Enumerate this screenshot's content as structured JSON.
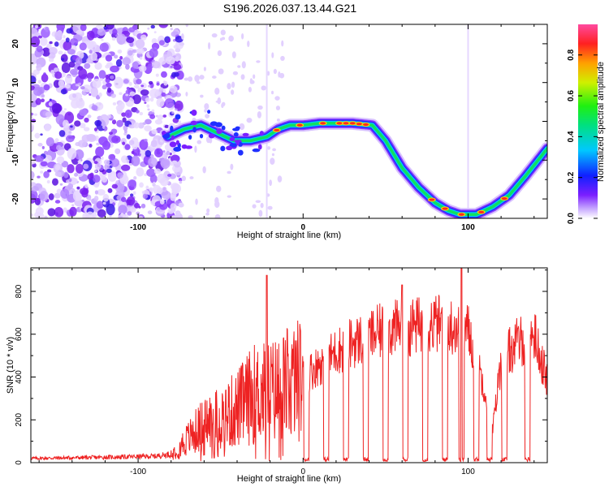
{
  "title": "S196.2026.037.13.44.G21",
  "chart_data": [
    {
      "type": "heatmap",
      "xlabel": "Height of straight line (km)",
      "ylabel": "Frequency (Hz)",
      "xlim": [
        -165,
        148
      ],
      "ylim": [
        -25,
        25
      ],
      "xticks": [
        -100,
        0,
        100
      ],
      "yticks": [
        -20,
        -10,
        0,
        10,
        20
      ],
      "colorbar": {
        "label": "Normalized spectral amplitude",
        "range": [
          0,
          0.95
        ],
        "ticks": [
          "0.0",
          "0.2",
          "0.4",
          "0.6",
          "0.8"
        ],
        "tick_values": [
          0,
          0.2,
          0.4,
          0.6,
          0.8
        ]
      },
      "ridge": {
        "x": [
          -82,
          -72,
          -62,
          -52,
          -42,
          -32,
          -22,
          -15,
          -8,
          0,
          10,
          20,
          30,
          42,
          50,
          60,
          70,
          80,
          88,
          95,
          105,
          115,
          125,
          135,
          148
        ],
        "y": [
          -4,
          -2,
          -1,
          -3,
          -5,
          -5,
          -4,
          -2,
          -1,
          -1,
          -0.5,
          -0.5,
          -0.5,
          -1,
          -5,
          -12,
          -17,
          -21,
          -23,
          -24,
          -24,
          -22,
          -19,
          -14,
          -7
        ]
      },
      "noise_region_end_x": -80
    },
    {
      "type": "line",
      "xlabel": "Height of straight line (km)",
      "ylabel": "SNR (10 * v/v)",
      "xlim": [
        -165,
        148
      ],
      "ylim": [
        0,
        910
      ],
      "xticks": [
        -100,
        0,
        100
      ],
      "yticks": [
        0,
        200,
        400,
        600,
        800
      ],
      "series": [
        {
          "name": "SNR",
          "color": "#ee2222",
          "envelope_x": [
            -165,
            -120,
            -90,
            -80,
            -70,
            -60,
            -50,
            -40,
            -30,
            -20,
            -10,
            0,
            10,
            20,
            30,
            40,
            50,
            60,
            70,
            80,
            90,
            100,
            110,
            115,
            120,
            130,
            140,
            148
          ],
          "envelope_y": [
            20,
            25,
            30,
            40,
            110,
            180,
            210,
            250,
            320,
            330,
            360,
            400,
            460,
            520,
            560,
            590,
            620,
            630,
            640,
            650,
            640,
            620,
            350,
            160,
            480,
            560,
            600,
            380
          ],
          "dropout_x": [
            2,
            14,
            26,
            38,
            50,
            62,
            74,
            86,
            96,
            105,
            113,
            122,
            136
          ]
        }
      ],
      "annotations": [
        {
          "x": -22,
          "y": 875
        },
        {
          "x": 96,
          "y": 910
        },
        {
          "x": 60,
          "y": 830
        }
      ]
    }
  ]
}
